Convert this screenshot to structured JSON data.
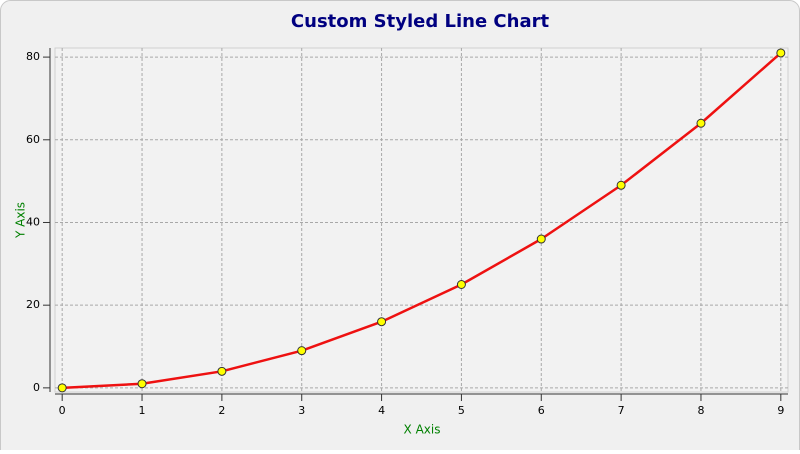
{
  "chart_data": {
    "type": "line",
    "title": "Custom Styled Line Chart",
    "x_label": "X Axis",
    "y_label": "Y Axis",
    "x": [
      0,
      1,
      2,
      3,
      4,
      5,
      6,
      7,
      8,
      9
    ],
    "series": [
      {
        "color": "#ee1111",
        "marker_color": "#ffff00",
        "values": [
          0,
          1,
          4,
          9,
          16,
          25,
          36,
          49,
          64,
          81
        ]
      }
    ],
    "xlim": [
      -0.09,
      9.09
    ],
    "ylim": [
      -1,
      82.2
    ],
    "xticks": [
      0,
      1,
      2,
      3,
      4,
      5,
      6,
      7,
      8,
      9
    ],
    "yticks": [
      0,
      20,
      40,
      60,
      80
    ],
    "grid": true
  }
}
